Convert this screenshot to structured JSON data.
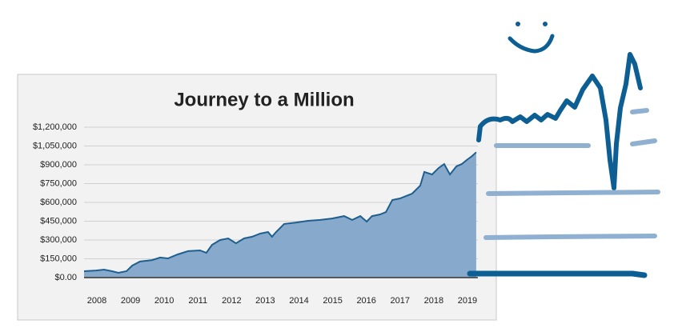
{
  "chart_data": {
    "type": "area",
    "title": "Journey to a Million",
    "x": [
      2007.62,
      2007.98,
      2008.21,
      2008.45,
      2008.64,
      2008.88,
      2009.05,
      2009.28,
      2009.64,
      2009.88,
      2010.11,
      2010.4,
      2010.71,
      2011.06,
      2011.25,
      2011.42,
      2011.66,
      2011.9,
      2012.13,
      2012.37,
      2012.61,
      2012.85,
      2013.08,
      2013.2,
      2013.32,
      2013.56,
      2013.92,
      2014.27,
      2014.63,
      2014.98,
      2015.34,
      2015.58,
      2015.82,
      2016.01,
      2016.17,
      2016.41,
      2016.58,
      2016.77,
      2017.0,
      2017.36,
      2017.6,
      2017.72,
      2017.95,
      2018.14,
      2018.31,
      2018.48,
      2018.67,
      2018.83,
      2018.98,
      2019.14,
      2019.26
    ],
    "values": [
      51000,
      57000,
      64000,
      51000,
      38000,
      51000,
      96000,
      128000,
      140000,
      160000,
      153000,
      185000,
      211000,
      217000,
      198000,
      262000,
      300000,
      313000,
      274000,
      313000,
      326000,
      351000,
      364000,
      326000,
      364000,
      428000,
      440000,
      453000,
      460000,
      472000,
      491000,
      460000,
      491000,
      447000,
      491000,
      504000,
      523000,
      619000,
      632000,
      670000,
      734000,
      843000,
      823000,
      874000,
      906000,
      823000,
      887000,
      906000,
      938000,
      970000,
      1000000
    ],
    "xlim": [
      2007.62,
      2019.31
    ],
    "xticks": [
      2008,
      2009,
      2010,
      2011,
      2012,
      2013,
      2014,
      2015,
      2016,
      2017,
      2018,
      2019
    ],
    "ylim": [
      0,
      1200000
    ],
    "yticks": [
      {
        "value": 0,
        "label": "$0.00"
      },
      {
        "value": 150000,
        "label": "$150,000"
      },
      {
        "value": 300000,
        "label": "$300,000"
      },
      {
        "value": 450000,
        "label": "$450,000"
      },
      {
        "value": 600000,
        "label": "$600,000"
      },
      {
        "value": 750000,
        "label": "$750,000"
      },
      {
        "value": 900000,
        "label": "$900,000"
      },
      {
        "value": 1050000,
        "label": "$1,050,000"
      },
      {
        "value": 1200000,
        "label": "$1,200,000"
      }
    ],
    "grid": true,
    "color": "#1f5f8f",
    "fill_color": "#87a9cb"
  }
}
